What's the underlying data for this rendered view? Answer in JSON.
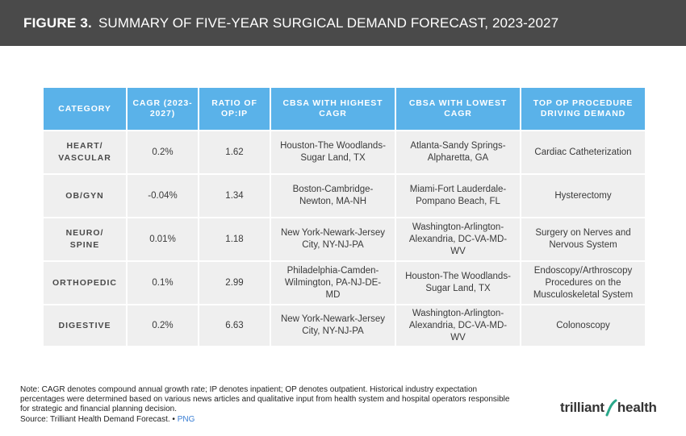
{
  "header": {
    "figure_label": "FIGURE 3.",
    "title": "SUMMARY OF FIVE-YEAR SURGICAL DEMAND FORECAST, 2023-2027"
  },
  "table": {
    "columns": [
      "CATEGORY",
      "CAGR (2023-2027)",
      "RATIO OF OP:IP",
      "CBSA WITH HIGHEST CAGR",
      "CBSA WITH LOWEST CAGR",
      "TOP OP PROCEDURE DRIVING DEMAND"
    ],
    "rows": [
      {
        "category": "HEART/ VASCULAR",
        "cagr": "0.2%",
        "ratio": "1.62",
        "highest": "Houston-The Woodlands-Sugar Land, TX",
        "lowest": "Atlanta-Sandy Springs-Alpharetta, GA",
        "procedure": "Cardiac Catheterization"
      },
      {
        "category": "OB/GYN",
        "cagr": "-0.04%",
        "ratio": "1.34",
        "highest": "Boston-Cambridge-Newton, MA-NH",
        "lowest": "Miami-Fort Lauderdale-Pompano Beach, FL",
        "procedure": "Hysterectomy"
      },
      {
        "category": "NEURO/ SPINE",
        "cagr": "0.01%",
        "ratio": "1.18",
        "highest": "New York-Newark-Jersey City, NY-NJ-PA",
        "lowest": "Washington-Arlington-Alexandria, DC-VA-MD-WV",
        "procedure": "Surgery on Nerves and Nervous System"
      },
      {
        "category": "ORTHOPEDIC",
        "cagr": "0.1%",
        "ratio": "2.99",
        "highest": "Philadelphia-Camden-Wilmington, PA-NJ-DE-MD",
        "lowest": "Houston-The Woodlands-Sugar Land, TX",
        "procedure": "Endoscopy/Arthroscopy Procedures on the Musculoskeletal System"
      },
      {
        "category": "DIGESTIVE",
        "cagr": "0.2%",
        "ratio": "6.63",
        "highest": "New York-Newark-Jersey City, NY-NJ-PA",
        "lowest": "Washington-Arlington-Alexandria, DC-VA-MD-WV",
        "procedure": "Colonoscopy"
      }
    ]
  },
  "note": {
    "text": "Note: CAGR denotes compound annual growth rate; IP denotes inpatient; OP denotes outpatient. Historical industry expectation percentages were determined based on various news articles and qualitative input from health system and hospital operators responsible for strategic and financial planning decision.",
    "source": "Source: Trilliant Health Demand Forecast.",
    "separator": "•",
    "png_link": "PNG"
  },
  "logo": {
    "text_left": "trilliant",
    "text_right": "health",
    "accent_color": "#2aa88a"
  },
  "colors": {
    "header_bg": "#4a4a4a",
    "table_header_bg": "#5ab2e9",
    "cell_bg": "#efefef"
  }
}
